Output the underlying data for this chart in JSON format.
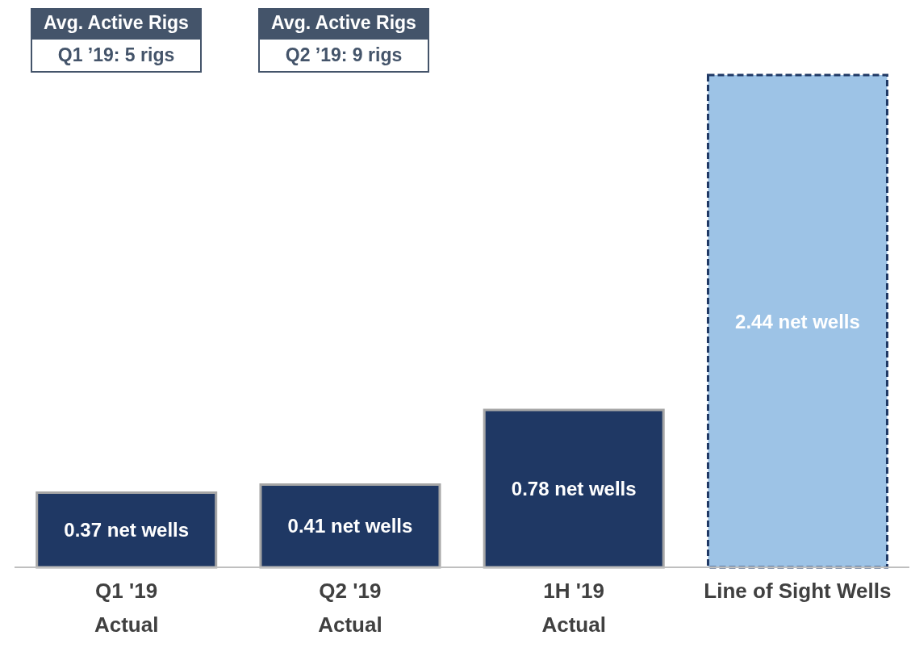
{
  "chart_data": {
    "type": "bar",
    "categories": [
      "Q1 '19\nActual",
      "Q2 '19\nActual",
      "1H '19\nActual",
      "Line of Sight Wells"
    ],
    "values": [
      0.37,
      0.41,
      0.78,
      2.44
    ],
    "colors": [
      "#1f3864",
      "#1f3864",
      "#1f3864",
      "#9dc3e6"
    ],
    "value_labels": [
      "0.37 net wells",
      "0.41 net wells",
      "0.78 net wells",
      "2.44 net wells"
    ],
    "annotations": [
      "Avg. Active Rigs",
      "Q1 ’19: 5 rigs",
      "Avg. Active Rigs",
      "Q2 ’19: 9 rigs"
    ],
    "grid": false,
    "legend": false
  }
}
